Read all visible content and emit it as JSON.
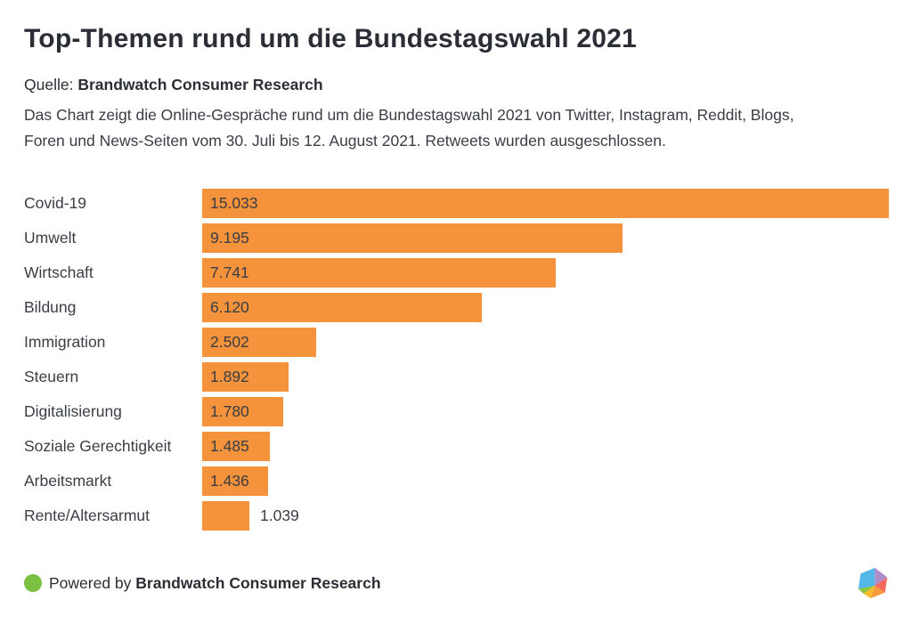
{
  "header": {
    "title": "Top-Themen rund um die Bundestagswahl 2021",
    "source_prefix": "Quelle:",
    "source_name": "Brandwatch Consumer Research",
    "description_line1": "Das Chart zeigt die Online-Gespräche rund um die Bundestagswahl 2021 von Twitter, Instagram, Reddit, Blogs,",
    "description_line2": "Foren und News-Seiten vom 30. Juli bis 12. August 2021. Retweets wurden ausgeschlossen."
  },
  "chart_data": {
    "type": "bar",
    "orientation": "horizontal",
    "title": "Top-Themen rund um die Bundestagswahl 2021",
    "xlabel": "",
    "ylabel": "",
    "xlim": [
      0,
      15033
    ],
    "grid": false,
    "legend": false,
    "categories": [
      "Covid-19",
      "Umwelt",
      "Wirtschaft",
      "Bildung",
      "Immigration",
      "Steuern",
      "Digitalisierung",
      "Soziale Gerechtigkeit",
      "Arbeitsmarkt",
      "Rente/Altersarmut"
    ],
    "values": [
      15033,
      9195,
      7741,
      6120,
      2502,
      1892,
      1780,
      1485,
      1436,
      1039
    ],
    "value_labels": [
      "15.033",
      "9.195",
      "7.741",
      "6.120",
      "2.502",
      "1.892",
      "1.780",
      "1.485",
      "1.436",
      "1.039"
    ],
    "value_label_position": [
      "inside",
      "inside",
      "inside",
      "inside",
      "inside",
      "inside",
      "inside",
      "inside",
      "inside",
      "outside"
    ],
    "bar_color": "#F5923C"
  },
  "footer": {
    "powered_by_prefix": "Powered by",
    "powered_by_name": "Brandwatch Consumer Research",
    "dot_color": "#7CC142",
    "logo": {
      "name": "brandwatch-vizia-hexagon",
      "colors": {
        "blue": "#53B7E8",
        "purple": "#AE8BC9",
        "red": "#F4695F",
        "orange": "#F89B3C",
        "yellow": "#FBBB2F",
        "green": "#8BC541"
      }
    }
  },
  "colors": {
    "background": "#FFFFFF",
    "title_text": "#2B2E35",
    "body_text": "#3A3E44",
    "bar": "#F5923C"
  }
}
